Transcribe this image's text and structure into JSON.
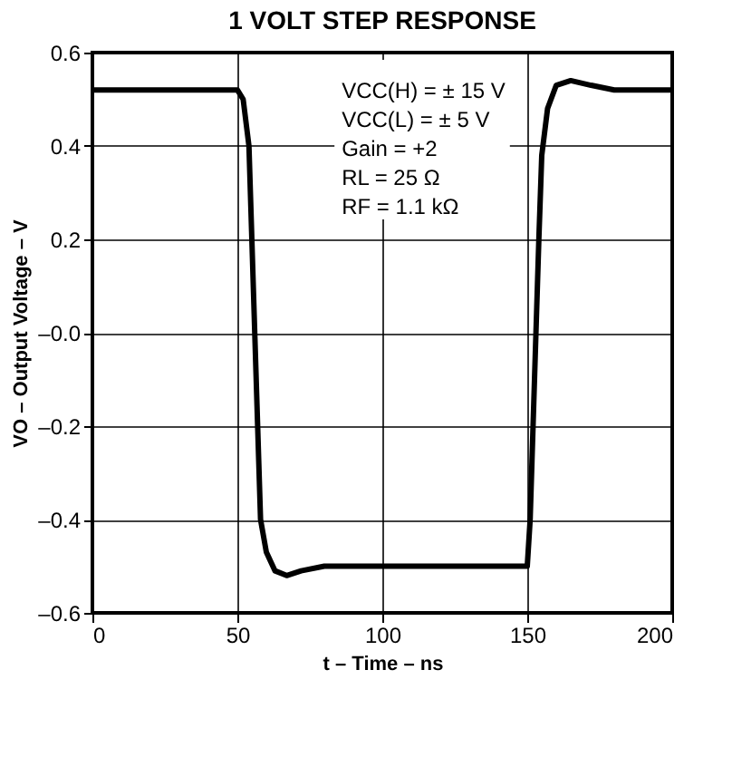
{
  "chart_data": {
    "type": "line",
    "title": "1 VOLT STEP RESPONSE",
    "xlabel": "t – Time – ns",
    "ylabel": "VO – Output Voltage – V",
    "x": [
      0,
      10,
      20,
      30,
      40,
      50,
      52,
      54,
      55,
      56,
      57,
      58,
      60,
      63,
      67,
      72,
      80,
      100,
      120,
      150,
      151,
      152,
      153,
      154,
      155,
      157,
      160,
      165,
      172,
      180,
      200
    ],
    "series": [
      {
        "color": "#000000",
        "values": [
          0.52,
          0.52,
          0.52,
          0.52,
          0.52,
          0.52,
          0.5,
          0.4,
          0.2,
          0.0,
          -0.2,
          -0.4,
          -0.47,
          -0.51,
          -0.52,
          -0.51,
          -0.5,
          -0.5,
          -0.5,
          -0.5,
          -0.4,
          -0.2,
          0.0,
          0.2,
          0.38,
          0.48,
          0.53,
          0.54,
          0.53,
          0.52,
          0.52
        ]
      }
    ],
    "xlim": [
      0,
      200
    ],
    "xticks": [
      0,
      50,
      100,
      150,
      200
    ],
    "ylim": [
      -0.6,
      0.6
    ],
    "yticks": [
      {
        "value": -0.6,
        "label": "–0.6"
      },
      {
        "value": -0.4,
        "label": "–0.4"
      },
      {
        "value": -0.2,
        "label": "–0.2"
      },
      {
        "value": 0,
        "label": "–0.0"
      },
      {
        "value": 0.2,
        "label": "0.2"
      },
      {
        "value": 0.4,
        "label": "0.4"
      },
      {
        "value": 0.6,
        "label": "0.6"
      }
    ],
    "grid": true,
    "marker": "none",
    "line_style": "solid",
    "annotations": [
      "VCC(H) = ± 15 V",
      "VCC(L) = ± 5 V",
      "Gain = +2",
      "RL = 25 Ω",
      "RF = 1.1 kΩ"
    ]
  }
}
